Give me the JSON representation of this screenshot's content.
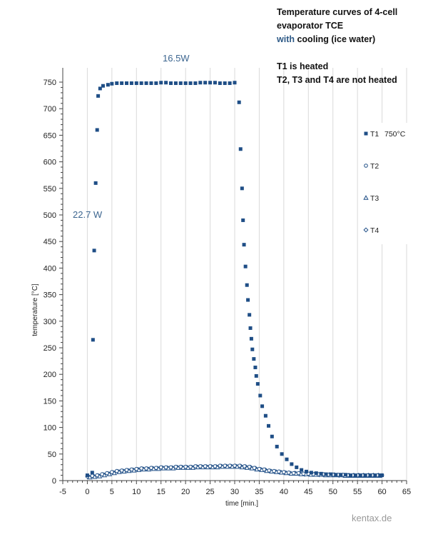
{
  "header": {
    "line1": "Temperature curves of 4-cell",
    "line2": "evaporator TCE",
    "line3_blue": "with",
    "line3_rest": " cooling (ice water)",
    "line4": "T1 is heated",
    "line5": "T2, T3 and T4 are not heated"
  },
  "annotations": {
    "power_top": "16.5W",
    "power_left": "22.7 W"
  },
  "footer": "kentax.de",
  "colors": {
    "series": "#1f4e86",
    "grid": "#d9d9d9",
    "annotation": "#3d6690"
  },
  "chart_data": {
    "type": "scatter",
    "xlabel": "time [min.]",
    "ylabel": "temperature [°C]",
    "xlim": [
      -5,
      65
    ],
    "ylim": [
      0,
      750
    ],
    "xticks": [
      -5,
      0,
      5,
      10,
      15,
      20,
      25,
      30,
      35,
      40,
      45,
      50,
      55,
      60,
      65
    ],
    "yticks": [
      0,
      50,
      100,
      150,
      200,
      250,
      300,
      350,
      400,
      450,
      500,
      550,
      600,
      650,
      700,
      750
    ],
    "grid": "vertical",
    "legend_position": "right",
    "legend": [
      {
        "name": "T1",
        "note": "750°C",
        "marker": "square"
      },
      {
        "name": "T2",
        "note": "",
        "marker": "circle"
      },
      {
        "name": "T3",
        "note": "",
        "marker": "triangle"
      },
      {
        "name": "T4",
        "note": "",
        "marker": "diamond"
      }
    ],
    "series": [
      {
        "name": "T1",
        "marker": "square",
        "x": [
          0,
          1,
          1.15,
          1.4,
          1.7,
          2.0,
          2.2,
          2.6,
          3.2,
          4.2,
          5,
          6,
          7,
          8,
          9,
          10,
          11,
          12,
          13,
          14,
          15,
          16,
          17,
          18,
          19,
          20,
          21,
          22,
          23,
          24,
          25,
          26,
          27,
          28,
          29,
          30,
          30.9,
          31.2,
          31.5,
          31.7,
          31.9,
          32.2,
          32.5,
          32.7,
          33.0,
          33.2,
          33.4,
          33.6,
          33.9,
          34.2,
          34.4,
          34.7,
          35.2,
          35.6,
          36.3,
          36.9,
          37.6,
          38.6,
          39.6,
          40.6,
          41.6,
          42.6,
          43.6,
          44.6,
          45.6,
          46.6,
          47.6,
          48.6,
          49.6,
          50.6,
          51.6,
          52.6,
          53.6,
          54.6,
          55.6,
          56.6,
          57.6,
          58.6,
          59.6,
          60
        ],
        "y": [
          10,
          15,
          265,
          433,
          560,
          660,
          724,
          738,
          743,
          745,
          747,
          748,
          748,
          748,
          748,
          748,
          748,
          748,
          748,
          748,
          749,
          749,
          748,
          748,
          748,
          748,
          748,
          748,
          749,
          749,
          749,
          749,
          748,
          748,
          748,
          749,
          712,
          624,
          550,
          490,
          444,
          403,
          368,
          340,
          312,
          287,
          267,
          247,
          229,
          213,
          197,
          182,
          160,
          140,
          122,
          103,
          83,
          64,
          50,
          40,
          31,
          25,
          20,
          17,
          15,
          14,
          13,
          12,
          12,
          11,
          11,
          11,
          10,
          10,
          10,
          10,
          10,
          10,
          10,
          10
        ]
      },
      {
        "name": "T2",
        "marker": "circle",
        "x": [
          0,
          1,
          2,
          3,
          4,
          5,
          6,
          7,
          8,
          9,
          10,
          11,
          12,
          13,
          14,
          15,
          16,
          17,
          18,
          19,
          20,
          21,
          22,
          23,
          24,
          25,
          26,
          27,
          28,
          29,
          30,
          31,
          32,
          33,
          34,
          35,
          36,
          37,
          38,
          39,
          40,
          41,
          42,
          43,
          44,
          45,
          46,
          47,
          48,
          49,
          50,
          51,
          52,
          53,
          54,
          55,
          56,
          57,
          58,
          59,
          60
        ],
        "y": [
          8,
          9,
          10,
          12,
          14,
          16,
          18,
          19,
          20,
          21,
          22,
          23,
          23,
          24,
          24,
          25,
          25,
          25,
          26,
          26,
          26,
          26,
          27,
          27,
          27,
          27,
          27,
          28,
          28,
          28,
          28,
          28,
          27,
          26,
          24,
          22,
          21,
          19,
          18,
          17,
          16,
          15,
          14,
          14,
          13,
          13,
          12,
          12,
          12,
          11,
          11,
          11,
          11,
          10,
          10,
          10,
          10,
          10,
          10,
          10,
          10
        ]
      },
      {
        "name": "T3",
        "marker": "triangle",
        "x": [
          0.5,
          1.5,
          2.5,
          3.5,
          4.5,
          5.5,
          6.5,
          7.5,
          8.5,
          9.5,
          10.5,
          11.5,
          12.5,
          13.5,
          14.5,
          15.5,
          16.5,
          17.5,
          18.5,
          19.5,
          20.5,
          21.5,
          22.5,
          23.5,
          24.5,
          25.5,
          26.5,
          27.5,
          28.5,
          29.5,
          30.5,
          31.5,
          32.5,
          33.5,
          34.5,
          35.5,
          36.5,
          37.5,
          38.5,
          39.5,
          40.5,
          41.5,
          42.5,
          43.5,
          44.5,
          45.5,
          46.5,
          47.5,
          48.5,
          49.5,
          50.5,
          51.5,
          52.5,
          53.5,
          54.5,
          55.5,
          56.5,
          57.5,
          58.5,
          59.5
        ],
        "y": [
          6,
          7,
          8,
          10,
          12,
          14,
          16,
          17,
          18,
          19,
          20,
          21,
          21,
          22,
          22,
          23,
          23,
          23,
          24,
          24,
          24,
          24,
          25,
          25,
          25,
          25,
          25,
          26,
          26,
          26,
          26,
          25,
          24,
          23,
          21,
          20,
          18,
          17,
          16,
          15,
          14,
          13,
          13,
          12,
          12,
          11,
          11,
          11,
          10,
          10,
          10,
          10,
          9,
          9,
          9,
          9,
          9,
          9,
          9,
          9
        ]
      },
      {
        "name": "T4",
        "marker": "diamond",
        "x": [
          0.25,
          1.25,
          2.25,
          3.25,
          4.25,
          5.25,
          6.25,
          7.25,
          8.25,
          9.25,
          10.25,
          11.25,
          12.25,
          13.25,
          14.25,
          15.25,
          16.25,
          17.25,
          18.25,
          19.25,
          20.25,
          21.25,
          22.25,
          23.25,
          24.25,
          25.25,
          26.25,
          27.25,
          28.25,
          29.25,
          30.25,
          31.25,
          32.25,
          33.25,
          34.25,
          35.25,
          36.25,
          37.25,
          38.25,
          39.25,
          40.25,
          41.25,
          42.25,
          43.25,
          44.25,
          45.25,
          46.25,
          47.25,
          48.25,
          49.25,
          50.25,
          51.25,
          52.25,
          53.25,
          54.25,
          55.25,
          56.25,
          57.25,
          58.25,
          59.25
        ],
        "y": [
          7,
          8,
          9,
          11,
          13,
          15,
          17,
          18,
          19,
          20,
          21,
          22,
          22,
          23,
          23,
          24,
          24,
          24,
          25,
          25,
          25,
          25,
          26,
          26,
          26,
          26,
          26,
          27,
          27,
          27,
          27,
          27,
          26,
          25,
          23,
          21,
          20,
          18,
          17,
          16,
          15,
          14,
          14,
          13,
          12,
          12,
          12,
          11,
          11,
          11,
          11,
          10,
          10,
          10,
          10,
          10,
          10,
          10,
          10,
          10
        ]
      }
    ]
  }
}
